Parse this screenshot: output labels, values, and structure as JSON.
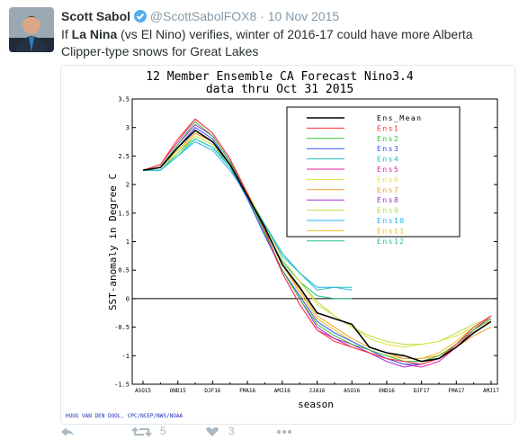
{
  "tweet": {
    "name": "Scott Sabol",
    "handle": "@ScottSabolFOX8",
    "date": "10 Nov 2015",
    "text": [
      "If ",
      "La Nina",
      " (vs El Nino) verifies, winter of 2016-17 could have more Alberta Clipper-type snows for Great Lakes"
    ],
    "retweets": "5",
    "likes": "3"
  },
  "chart_data": {
    "type": "line",
    "title": "12 Member Ensemble CA Forecast Nino3.4",
    "subtitle": "data thru Oct 31 2015",
    "y_label": "SST-anomaly in Degree C",
    "x_label": "season",
    "credit": "HUUG VAN DEN DOOL, CPC/NCEP/NWS/NOAA",
    "categories": [
      "ASO15",
      null,
      "OND15",
      null,
      "DJF16",
      null,
      "FMA16",
      null,
      "AMJ16",
      null,
      "JJA16",
      null,
      "ASO16",
      null,
      "OND16",
      null,
      "DJF17",
      null,
      "FMA17",
      null,
      "AMJ17"
    ],
    "ylim": [
      -1.5,
      3.5
    ],
    "yticks": [
      -1.5,
      -1,
      -0.5,
      0,
      0.5,
      1,
      1.5,
      2,
      2.5,
      3,
      3.5
    ],
    "series": [
      {
        "name": "Ens_Mean",
        "color": "#000000",
        "values": [
          2.25,
          2.3,
          2.65,
          2.95,
          2.75,
          2.35,
          1.8,
          1.25,
          0.6,
          0.2,
          -0.25,
          -0.35,
          -0.45,
          -0.85,
          -0.95,
          -1.0,
          -1.1,
          -1.05,
          -0.85,
          -0.6,
          -0.4
        ]
      },
      {
        "name": "Ens1",
        "color": "#ff3030",
        "values": [
          2.25,
          2.35,
          2.8,
          3.15,
          2.9,
          2.45,
          1.85,
          1.2,
          0.45,
          -0.1,
          -0.55,
          -0.75,
          -0.85,
          -0.95,
          -1.05,
          -1.1,
          -1.15,
          -1.05,
          -0.8,
          -0.5,
          -0.3
        ]
      },
      {
        "name": "Ens2",
        "color": "#30c030",
        "values": [
          2.25,
          2.3,
          2.7,
          3.1,
          2.85,
          2.4,
          1.8,
          1.15,
          0.5,
          0.0,
          -0.45,
          -0.65,
          -0.8,
          -0.9,
          -1.0,
          -1.1,
          -1.1,
          -1.0,
          -0.8,
          -0.55,
          -0.35
        ]
      },
      {
        "name": "Ens3",
        "color": "#3050ff",
        "values": [
          2.25,
          2.3,
          2.65,
          3.0,
          2.8,
          2.35,
          1.75,
          1.1,
          0.5,
          0.05,
          -0.4,
          -0.6,
          -0.75,
          -0.9,
          -1.05,
          -1.15,
          -1.15,
          -1.05,
          -0.85,
          -0.6,
          -0.4
        ]
      },
      {
        "name": "Ens4",
        "color": "#20c0c0",
        "values": [
          2.25,
          2.25,
          2.5,
          2.8,
          2.65,
          2.3,
          1.8,
          1.3,
          0.75,
          0.45,
          0.15,
          0.2,
          0.2,
          null,
          null,
          null,
          null,
          null,
          null,
          null,
          null
        ]
      },
      {
        "name": "Ens5",
        "color": "#e020a0",
        "values": [
          2.25,
          2.35,
          2.75,
          3.15,
          2.9,
          2.45,
          1.8,
          1.15,
          0.45,
          -0.1,
          -0.55,
          -0.7,
          -0.85,
          -0.95,
          -1.05,
          -1.15,
          -1.2,
          -1.1,
          -0.85,
          -0.55,
          -0.3
        ]
      },
      {
        "name": "Ens6",
        "color": "#e0e040",
        "values": [
          2.25,
          2.3,
          2.6,
          2.85,
          2.7,
          2.35,
          1.85,
          1.3,
          0.7,
          0.3,
          -0.1,
          -0.3,
          -0.5,
          -0.7,
          -0.8,
          -0.85,
          -0.8,
          -0.75,
          -0.65,
          -0.5,
          -0.4
        ]
      },
      {
        "name": "Ens7",
        "color": "#f0a030",
        "values": [
          2.25,
          2.3,
          2.6,
          2.9,
          2.75,
          2.35,
          1.8,
          1.25,
          0.6,
          0.15,
          -0.3,
          -0.5,
          -0.7,
          -0.85,
          -0.95,
          -1.05,
          -1.05,
          -1.0,
          -0.85,
          -0.65,
          -0.5
        ]
      },
      {
        "name": "Ens8",
        "color": "#a030d0",
        "values": [
          2.25,
          2.3,
          2.7,
          3.05,
          2.85,
          2.4,
          1.8,
          1.15,
          0.5,
          0.0,
          -0.5,
          -0.7,
          -0.8,
          -0.95,
          -1.1,
          -1.2,
          -1.15,
          -1.05,
          -0.8,
          -0.55,
          -0.35
        ]
      },
      {
        "name": "Ens9",
        "color": "#b0e040",
        "values": [
          2.25,
          2.3,
          2.55,
          2.8,
          2.65,
          2.3,
          1.8,
          1.3,
          0.7,
          0.3,
          -0.05,
          -0.3,
          -0.5,
          -0.65,
          -0.75,
          -0.8,
          -0.8,
          -0.75,
          -0.6,
          -0.45,
          -0.35
        ]
      },
      {
        "name": "Ens10",
        "color": "#20b0f0",
        "values": [
          2.25,
          2.25,
          2.5,
          2.75,
          2.6,
          2.25,
          1.8,
          1.3,
          0.8,
          0.45,
          0.2,
          0.2,
          0.15,
          null,
          null,
          null,
          null,
          null,
          null,
          null,
          null
        ]
      },
      {
        "name": "Ens11",
        "color": "#f0c020",
        "values": [
          2.25,
          2.3,
          2.6,
          2.9,
          2.75,
          2.35,
          1.85,
          1.25,
          0.6,
          0.1,
          -0.35,
          -0.55,
          -0.75,
          -0.9,
          -1.0,
          -1.05,
          -1.05,
          -0.95,
          -0.75,
          -0.5,
          -0.4
        ]
      },
      {
        "name": "Ens12",
        "color": "#20c090",
        "values": [
          2.25,
          2.25,
          2.55,
          2.85,
          2.7,
          2.3,
          1.75,
          1.2,
          0.65,
          0.3,
          0.05,
          0.0,
          0.0,
          null,
          null,
          null,
          null,
          null,
          null,
          null,
          null
        ]
      }
    ]
  }
}
